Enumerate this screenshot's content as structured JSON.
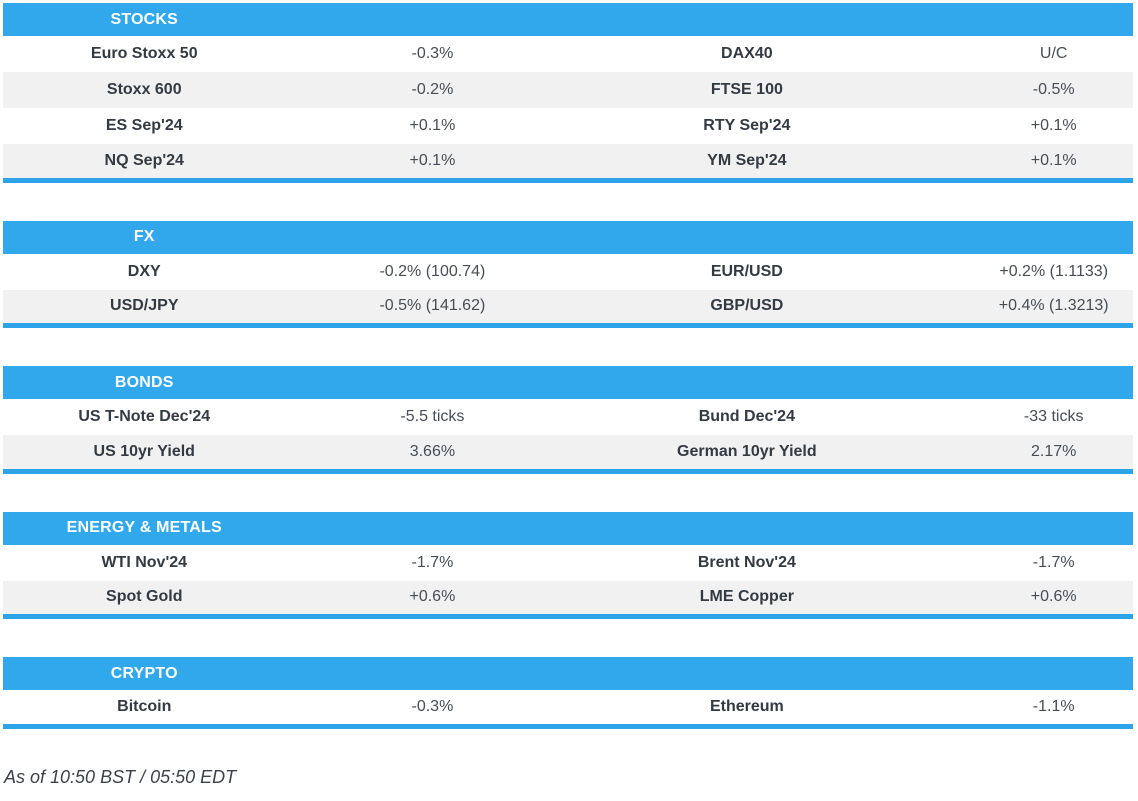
{
  "colors": {
    "accent_blue": "#31a8ec",
    "section_border_blue": "#2ea4e8",
    "row_alt_gray": "#f1f1f2",
    "label_text": "#333a42",
    "value_text": "#474d53",
    "header_text": "#ffffff"
  },
  "sections": [
    {
      "title": "STOCKS",
      "rows": [
        {
          "l1": "Euro Stoxx 50",
          "v1": "-0.3%",
          "l2": "DAX40",
          "v2": "U/C"
        },
        {
          "l1": "Stoxx 600",
          "v1": "-0.2%",
          "l2": "FTSE 100",
          "v2": "-0.5%"
        },
        {
          "l1": "ES Sep'24",
          "v1": "+0.1%",
          "l2": "RTY Sep'24",
          "v2": "+0.1%"
        },
        {
          "l1": "NQ Sep'24",
          "v1": "+0.1%",
          "l2": "YM Sep'24",
          "v2": "+0.1%"
        }
      ]
    },
    {
      "title": "FX",
      "rows": [
        {
          "l1": "DXY",
          "v1": "-0.2% (100.74)",
          "l2": "EUR/USD",
          "v2": "+0.2% (1.1133)"
        },
        {
          "l1": "USD/JPY",
          "v1": "-0.5% (141.62)",
          "l2": "GBP/USD",
          "v2": "+0.4% (1.3213)"
        }
      ]
    },
    {
      "title": "BONDS",
      "rows": [
        {
          "l1": "US T-Note Dec'24",
          "v1": "-5.5 ticks",
          "l2": "Bund Dec'24",
          "v2": "-33 ticks"
        },
        {
          "l1": "US 10yr Yield",
          "v1": "3.66%",
          "l2": "German 10yr Yield",
          "v2": "2.17%"
        }
      ]
    },
    {
      "title": "ENERGY & METALS",
      "rows": [
        {
          "l1": "WTI Nov'24",
          "v1": "-1.7%",
          "l2": "Brent Nov'24",
          "v2": "-1.7%"
        },
        {
          "l1": "Spot Gold",
          "v1": "+0.6%",
          "l2": "LME Copper",
          "v2": "+0.6%"
        }
      ]
    },
    {
      "title": "CRYPTO",
      "rows": [
        {
          "l1": "Bitcoin",
          "v1": "-0.3%",
          "l2": "Ethereum",
          "v2": "-1.1%"
        }
      ]
    }
  ],
  "footer": {
    "as_of": "As of 10:50 BST / 05:50 EDT"
  }
}
